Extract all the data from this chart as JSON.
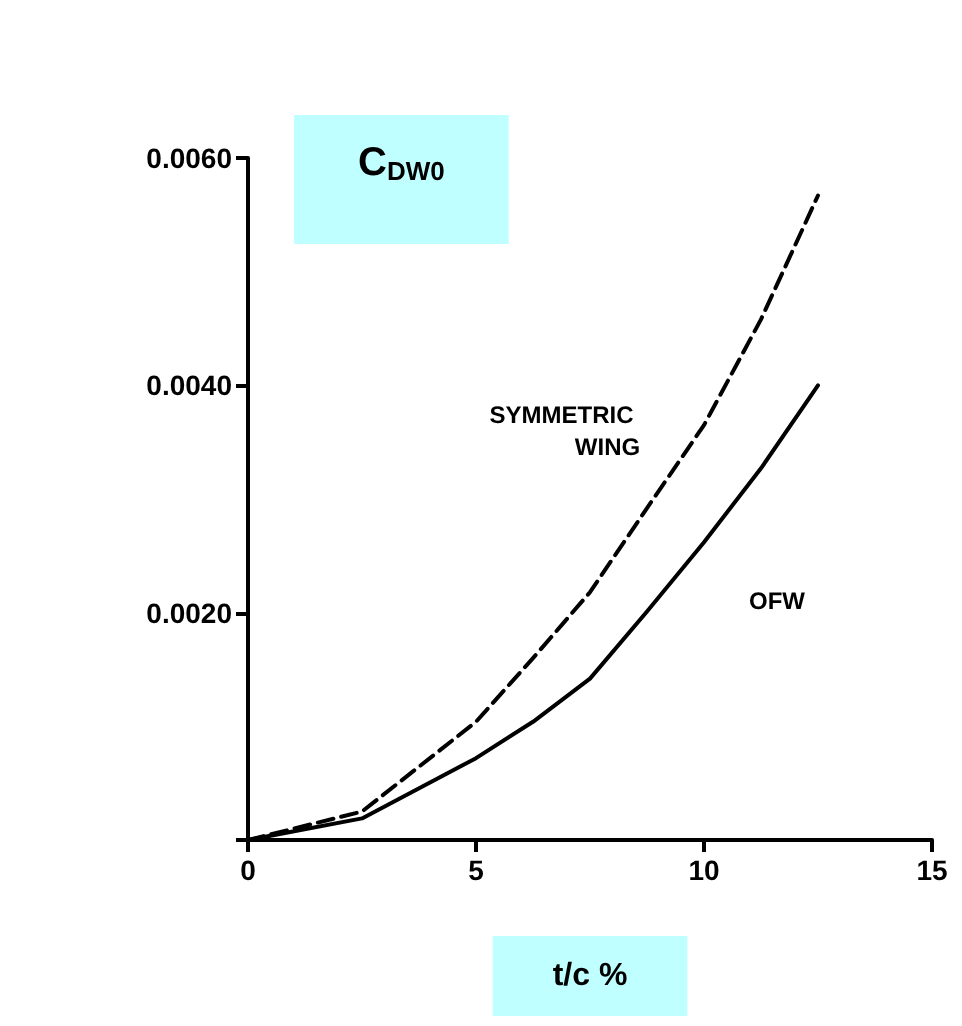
{
  "chart_data": {
    "type": "line",
    "title": "C$_{DW0}$",
    "xlabel": "t/c %",
    "xlim": [
      0,
      15
    ],
    "xticks": [
      0,
      5,
      10,
      15
    ],
    "ylim": [
      0,
      0.006
    ],
    "yticks": [
      {
        "value": 0,
        "label": null
      },
      {
        "value": 0.002,
        "label": "0.0020"
      },
      {
        "value": 0.004,
        "label": "0.0040"
      },
      {
        "value": 0.006,
        "label": "0.0060"
      }
    ],
    "grid": false,
    "legend": false,
    "marker": "none",
    "series": [
      {
        "name": "SYMMETRIC WING",
        "color": "#000000",
        "line_style": "dashed",
        "x": [
          0,
          2.5,
          5,
          6.25,
          7.5,
          8.75,
          10,
          11.25,
          12.5
        ],
        "values": [
          0,
          0.00025,
          0.00104,
          0.0016,
          0.00218,
          0.00292,
          0.00365,
          0.00458,
          0.00567
        ]
      },
      {
        "name": "OFW",
        "color": "#000000",
        "line_style": "solid",
        "x": [
          0,
          2.5,
          5,
          6.25,
          7.5,
          8.75,
          10,
          11.25,
          12.5
        ],
        "values": [
          0,
          0.00019,
          0.00072,
          0.00104,
          0.00142,
          0.00201,
          0.00262,
          0.00327,
          0.004
        ]
      }
    ]
  }
}
